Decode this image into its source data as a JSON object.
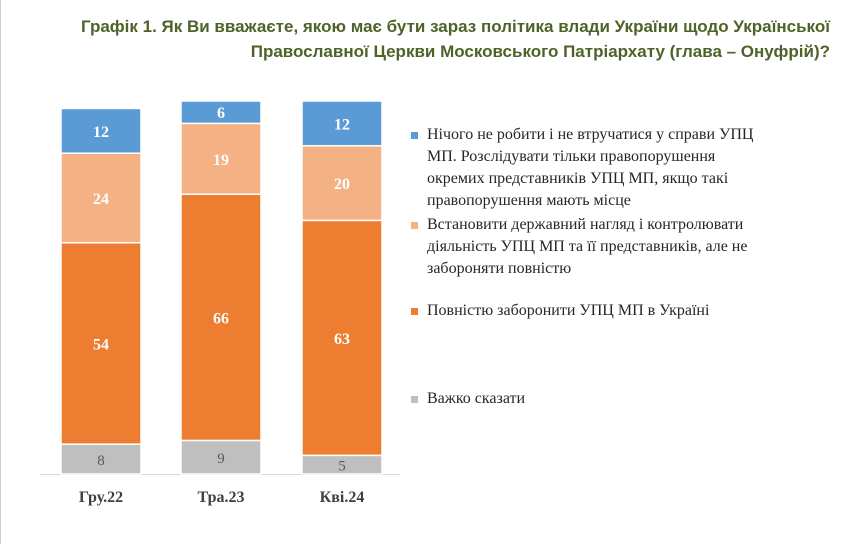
{
  "title": "Графік 1. Як Ви вважаєте, якою має бути зараз політика влади України щодо Української Православної Церкви Московського Патріархату (глава – Онуфрій)?",
  "chart_data": {
    "type": "bar",
    "stacked": true,
    "orientation": "vertical",
    "title": "Графік 1. Як Ви вважаєте, якою має бути зараз політика влади України щодо Української Православної Церкви Московського Патріархату (глава – Онуфрій)?",
    "xlabel": "",
    "ylabel": "",
    "ylim": [
      0,
      100
    ],
    "grid": false,
    "legend_position": "right",
    "categories": [
      "Гру.22",
      "Тра.23",
      "Кві.24"
    ],
    "series": [
      {
        "name": "Важко сказати",
        "values": [
          8,
          9,
          5
        ],
        "color": "#bfbfbf",
        "label_color": "#595959"
      },
      {
        "name": "Повністю заборонити УПЦ МП в Україні",
        "values": [
          54,
          66,
          63
        ],
        "color": "#ed7d31",
        "label_color": "#ffffff"
      },
      {
        "name": "Встановити державний нагляд і контролювати діяльність УПЦ МП та її представників, але не забороняти повністю",
        "values": [
          24,
          19,
          20
        ],
        "color": "#f4b183",
        "label_color": "#ffffff"
      },
      {
        "name": "Нічого не робити і не втручатися у справи УПЦ МП. Розслідувати тільки правопорушення окремих представників УПЦ МП, якщо такі правопорушення мають місце",
        "values": [
          12,
          6,
          12
        ],
        "color": "#5b9bd5",
        "label_color": "#ffffff"
      }
    ]
  }
}
